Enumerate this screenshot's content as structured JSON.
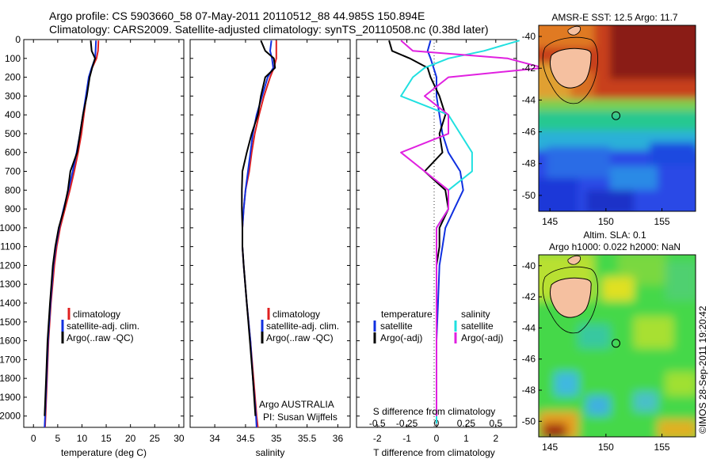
{
  "header": {
    "line1": "Argo profile: CS 5903660_58 07-May-2011 20110512_88 44.985S 150.894E",
    "line2": "Climatology: CARS2009. Satellite-adjusted climatology: synTS_20110508.nc (0.38d later)"
  },
  "colors": {
    "climatology": "#e02020",
    "satellite": "#1030e0",
    "argo": "#000000",
    "sat_salinity": "#20e0e0",
    "argo_salinity": "#e020e0"
  },
  "chart_data": [
    {
      "type": "line",
      "id": "temperature",
      "xlabel": "temperature (deg C)",
      "xlim": [
        -2,
        31
      ],
      "ylim": [
        0,
        2060
      ],
      "xticks": [
        "0",
        "5",
        "10",
        "15",
        "20",
        "25",
        "30"
      ],
      "yticks": [
        "0",
        "100",
        "200",
        "300",
        "400",
        "500",
        "600",
        "700",
        "800",
        "900",
        "1000",
        "1100",
        "1200",
        "1300",
        "1400",
        "1500",
        "1600",
        "1700",
        "1800",
        "1900",
        "2000"
      ],
      "depth": [
        5,
        60,
        100,
        150,
        200,
        300,
        400,
        500,
        600,
        700,
        800,
        900,
        1000,
        1100,
        1200,
        1400,
        1600,
        1800,
        2000,
        2060
      ],
      "series": [
        {
          "name": "climatology",
          "values": [
            13.4,
            13.3,
            13.0,
            12.1,
            11.5,
            10.9,
            10.4,
            9.9,
            9.2,
            8.4,
            7.5,
            6.5,
            5.5,
            4.8,
            4.3,
            3.6,
            3.1,
            2.8,
            2.5,
            2.4
          ]
        },
        {
          "name": "satellite-adj. clim.",
          "values": [
            12.9,
            12.8,
            12.7,
            12.0,
            11.4,
            10.8,
            10.2,
            9.6,
            8.9,
            8.1,
            7.2,
            6.2,
            5.3,
            4.6,
            4.1,
            3.5,
            3.0,
            2.7,
            2.4,
            2.3
          ]
        },
        {
          "name": "Argo(..raw -QC)",
          "values": [
            11.8,
            12.0,
            12.7,
            12.1,
            11.6,
            11.0,
            10.2,
            9.6,
            9.0,
            7.6,
            7.1,
            6.3,
            5.2,
            4.5,
            4.0,
            3.4,
            2.9,
            2.6,
            2.3,
            null
          ]
        }
      ],
      "legend": [
        "climatology",
        "satellite-adj. clim.",
        "Argo(..raw -QC)"
      ]
    },
    {
      "type": "line",
      "id": "salinity",
      "xlabel": "salinity",
      "xlim": [
        33.6,
        36.2
      ],
      "ylim": [
        0,
        2060
      ],
      "xticks": [
        "34",
        "34.5",
        "35",
        "35.5",
        "36"
      ],
      "depth": [
        5,
        60,
        100,
        150,
        200,
        300,
        400,
        500,
        600,
        700,
        800,
        900,
        1000,
        1100,
        1200,
        1400,
        1600,
        1800,
        2000,
        2060
      ],
      "series": [
        {
          "name": "climatology",
          "values": [
            35.0,
            35.0,
            35.0,
            34.96,
            34.9,
            34.8,
            34.72,
            34.65,
            34.6,
            34.56,
            34.5,
            34.47,
            34.45,
            34.45,
            34.47,
            34.52,
            34.58,
            34.63,
            34.68,
            34.7
          ]
        },
        {
          "name": "satellite-adj. clim.",
          "values": [
            34.92,
            34.9,
            34.93,
            34.95,
            34.86,
            34.77,
            34.68,
            34.62,
            34.58,
            34.54,
            34.5,
            34.47,
            34.45,
            34.45,
            34.47,
            34.52,
            34.58,
            34.62,
            34.67,
            34.68
          ]
        },
        {
          "name": "Argo(..raw -QC)",
          "values": [
            34.75,
            34.82,
            34.96,
            34.98,
            34.82,
            34.75,
            34.7,
            34.6,
            34.52,
            34.45,
            34.44,
            34.44,
            34.45,
            34.45,
            34.47,
            34.52,
            34.57,
            34.62,
            34.66,
            null
          ]
        }
      ],
      "legend": [
        "climatology",
        "satellite-adj. clim.",
        "Argo(..raw -QC)"
      ],
      "annotation": [
        "Argo AUSTRALIA",
        "PI: Susan Wijffels"
      ]
    },
    {
      "type": "line",
      "id": "differences",
      "xlabel": "T difference from climatology",
      "xlabel_top": "S difference from climatology",
      "xlim": [
        -2.7,
        2.7
      ],
      "ylim": [
        0,
        2060
      ],
      "xticks": [
        "-2",
        "-1",
        "0",
        "1",
        "2"
      ],
      "xticks_top": [
        "-0.5",
        "-0.25",
        "0",
        "0.25",
        "0.5"
      ],
      "depth": [
        5,
        60,
        100,
        150,
        200,
        300,
        400,
        500,
        600,
        700,
        800,
        900,
        1000,
        1100,
        1200,
        1400,
        1600,
        1800,
        2000,
        2040
      ],
      "series": [
        {
          "name": "satellite",
          "values": [
            -0.2,
            -0.3,
            -0.2,
            -0.1,
            0.0,
            0.0,
            0.1,
            0.2,
            0.4,
            0.8,
            0.9,
            0.6,
            0.3,
            0.2,
            0.1,
            0.05,
            0.0,
            0.0,
            0.0,
            0.0
          ]
        },
        {
          "name": "Argo(-adj)",
          "values": [
            -1.6,
            -1.5,
            -0.9,
            -0.3,
            -0.2,
            0.1,
            0.3,
            0.1,
            0.2,
            -0.4,
            0.3,
            0.4,
            0.1,
            0.1,
            0.0,
            0.0,
            0.0,
            0.0,
            0.0,
            null
          ]
        },
        {
          "name": "satellite (salinity)",
          "values": [
            0.7,
            0.4,
            0.1,
            -0.1,
            -0.2,
            -0.3,
            0.1,
            0.2,
            0.3,
            0.3,
            0.1,
            0.1,
            0.0,
            0.0,
            0.0,
            0.0,
            0.0,
            0.0,
            0.0,
            0.0
          ]
        },
        {
          "name": "Argo(-adj) (salinity)",
          "values": [
            -0.3,
            -0.2,
            0.6,
            0.9,
            0.1,
            -0.1,
            0.1,
            0.1,
            -0.3,
            -0.1,
            0.1,
            0.1,
            0.0,
            0.0,
            0.0,
            0.0,
            0.0,
            0.0,
            0.0,
            null
          ]
        }
      ],
      "legend_titles": [
        "temperature",
        "salinity"
      ],
      "legend": [
        "satellite",
        "Argo(-adj)",
        "satellite",
        "Argo(-adj)"
      ]
    },
    {
      "type": "heatmap",
      "id": "sst-map",
      "title": "AMSR-E SST: 12.5 Argo: 11.7",
      "xticks": [
        "145",
        "150",
        "155"
      ],
      "yticks": [
        "-40",
        "-42",
        "-44",
        "-46",
        "-48",
        "-50"
      ],
      "xlim": [
        144,
        158
      ],
      "ylim": [
        -51,
        -39.3
      ],
      "argo_position": {
        "lon": 150.894,
        "lat": -44.985
      }
    },
    {
      "type": "heatmap",
      "id": "sla-map",
      "title": [
        "Altim. SLA: 0.1",
        "Argo h1000: 0.022 h2000: NaN"
      ],
      "xticks": [
        "145",
        "150",
        "155"
      ],
      "yticks": [
        "-40",
        "-42",
        "-44",
        "-46",
        "-48",
        "-50"
      ],
      "xlim": [
        144,
        158
      ],
      "ylim": [
        -51,
        -39.3
      ],
      "argo_position": {
        "lon": 150.894,
        "lat": -44.985
      }
    }
  ],
  "footer": {
    "credit": "©IMOS 28-Sep-2011 19:20:42"
  }
}
